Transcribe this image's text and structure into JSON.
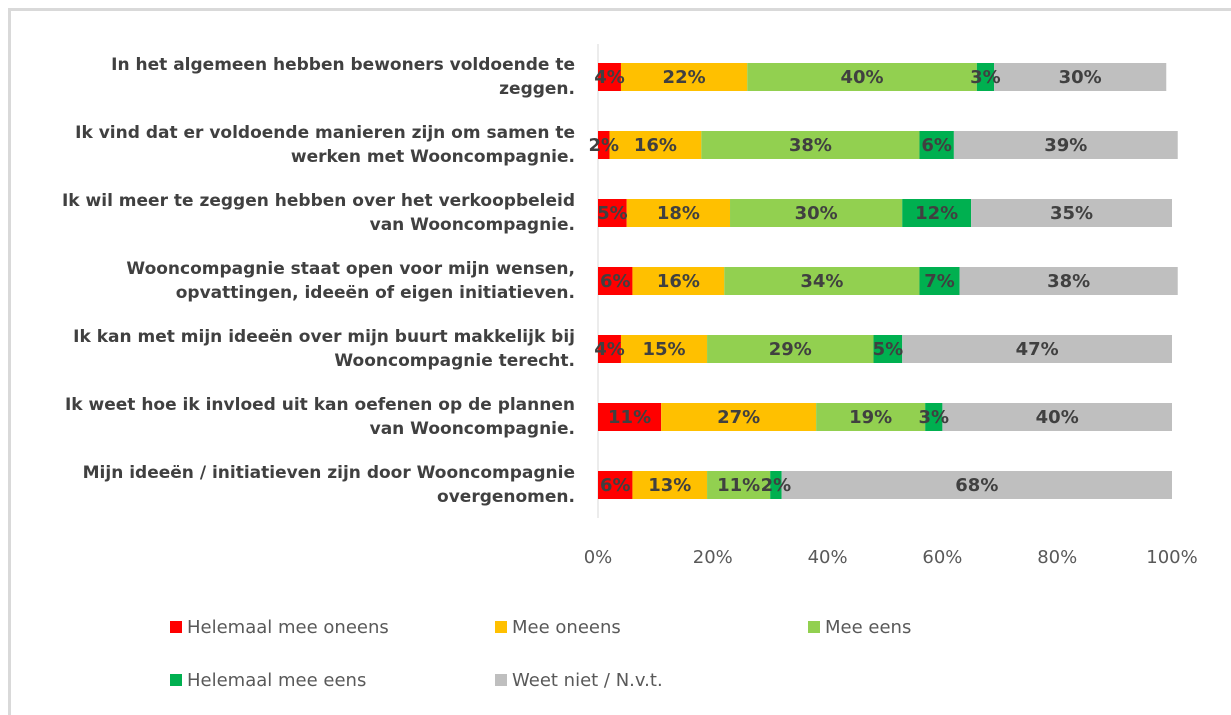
{
  "chart_data": {
    "type": "stacked-bar-horizontal",
    "categories": [
      "In het algemeen hebben bewoners voldoende te zeggen.",
      "Ik vind dat er voldoende manieren zijn om samen te werken met Wooncompagnie.",
      "Ik wil meer te zeggen hebben over het verkoopbeleid van Wooncompagnie.",
      "Wooncompagnie staat open voor mijn wensen, opvattingen, ideeën of eigen initiatieven.",
      "Ik kan met mijn ideeën over mijn buurt makkelijk bij Wooncompagnie terecht.",
      "Ik weet hoe ik invloed uit kan oefenen op de plannen van Wooncompagnie.",
      "Mijn ideeën / initiatieven zijn door Wooncompagnie overgenomen."
    ],
    "series": [
      {
        "name": "Helemaal mee oneens",
        "color": "#ff0000",
        "values": [
          4,
          2,
          5,
          6,
          4,
          11,
          6
        ],
        "value_labels": [
          "4%",
          "2%",
          "5%",
          "6%",
          "4%",
          "11%",
          "6%"
        ]
      },
      {
        "name": "Mee oneens",
        "color": "#ffc000",
        "values": [
          22,
          16,
          18,
          16,
          15,
          27,
          13
        ],
        "value_labels": [
          "22%",
          "16%",
          "18%",
          "16%",
          "15%",
          "27%",
          "13%"
        ]
      },
      {
        "name": "Mee eens",
        "color": "#92d050",
        "values": [
          40,
          38,
          30,
          34,
          29,
          19,
          11
        ],
        "value_labels": [
          "40%",
          "38%",
          "30%",
          "34%",
          "29%",
          "19%",
          "11%"
        ]
      },
      {
        "name": "Helemaal mee eens",
        "color": "#00b050",
        "values": [
          3,
          6,
          12,
          7,
          5,
          3,
          2
        ],
        "value_labels": [
          "3%",
          "6%",
          "12%",
          "7%",
          "5%",
          "3%",
          "2%"
        ]
      },
      {
        "name": "Weet niet / N.v.t.",
        "color": "#bfbfbf",
        "values": [
          30,
          39,
          35,
          38,
          47,
          40,
          68
        ],
        "value_labels": [
          "30%",
          "39%",
          "35%",
          "38%",
          "47%",
          "40%",
          "68%"
        ]
      }
    ],
    "xlim": [
      0,
      100
    ],
    "xticks": [
      {
        "value": 0,
        "label": "0%"
      },
      {
        "value": 20,
        "label": "20%"
      },
      {
        "value": 40,
        "label": "40%"
      },
      {
        "value": 60,
        "label": "60%"
      },
      {
        "value": 80,
        "label": "80%"
      },
      {
        "value": 100,
        "label": "100%"
      }
    ],
    "grid": false,
    "legend": "bottom"
  }
}
